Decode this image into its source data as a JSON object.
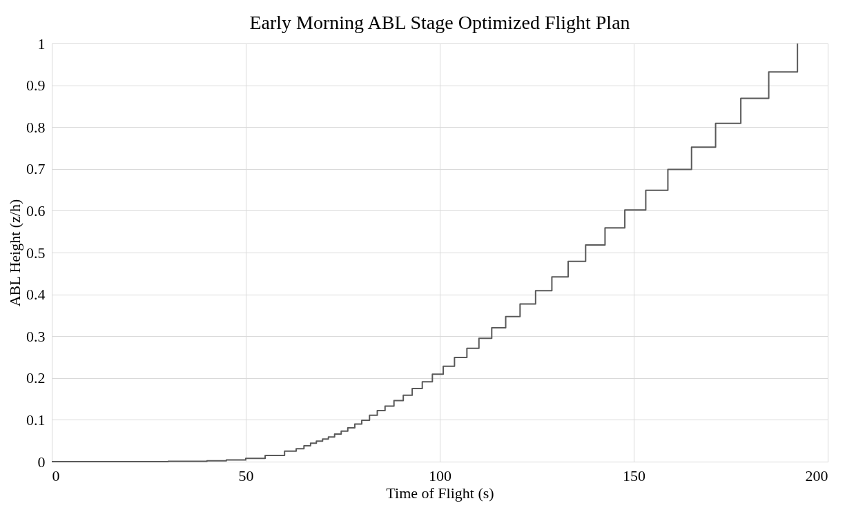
{
  "chart_data": {
    "type": "step",
    "title": "Early Morning ABL Stage Optimized Flight Plan",
    "xlabel": "Time of Flight (s)",
    "ylabel": "ABL Height (z/h)",
    "series": [
      {
        "color": "#595959",
        "x": [
          0,
          30,
          40,
          45,
          50,
          55,
          60,
          63,
          65,
          66.7,
          68.2,
          69.8,
          71.3,
          72.9,
          74.6,
          76.3,
          78.1,
          79.9,
          81.9,
          83.9,
          85.9,
          88.2,
          90.6,
          92.9,
          95.5,
          98.1,
          100.9,
          103.8,
          107.0,
          110.1,
          113.4,
          117.0,
          120.7,
          124.7,
          128.9,
          133.1,
          137.6,
          142.6,
          147.7,
          153.1,
          158.8,
          164.9,
          171.1,
          177.6,
          184.8,
          192.2
        ],
        "values": [
          0,
          0.001,
          0.002,
          0.004,
          0.008,
          0.015,
          0.025,
          0.031,
          0.038,
          0.044,
          0.049,
          0.054,
          0.059,
          0.066,
          0.073,
          0.081,
          0.09,
          0.099,
          0.111,
          0.122,
          0.133,
          0.146,
          0.159,
          0.175,
          0.191,
          0.209,
          0.228,
          0.249,
          0.271,
          0.295,
          0.32,
          0.347,
          0.377,
          0.409,
          0.442,
          0.479,
          0.518,
          0.559,
          0.602,
          0.649,
          0.699,
          0.752,
          0.809,
          0.869,
          0.932,
          1.0
        ]
      }
    ],
    "xlim": [
      0,
      200
    ],
    "xticks": [
      0,
      50,
      100,
      150,
      200
    ],
    "ylim": [
      0,
      1
    ],
    "yticks": [
      0,
      0.1,
      0.2,
      0.3,
      0.4,
      0.5,
      0.6,
      0.7,
      0.8,
      0.9,
      1
    ],
    "grid": true,
    "marker": "none",
    "line_style": "solid"
  }
}
